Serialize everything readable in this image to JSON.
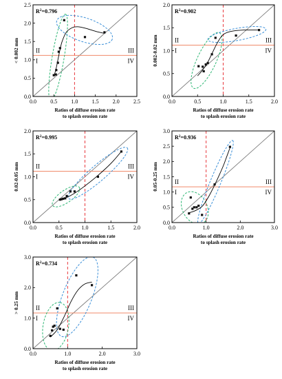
{
  "chart_data": [
    {
      "type": "scatter",
      "ylabel": "< 0.002 mm",
      "xlabel_line1": "Ratios of diffuse erosion rate",
      "xlabel_line2": "to splash erosion rate",
      "r2_base": "R",
      "r2_sup": "2",
      "r2_value": "=0.796",
      "xlim": [
        0,
        2.5
      ],
      "ylim": [
        0,
        2.5
      ],
      "xticks": [
        "0.0",
        "0.5",
        "1.0",
        "1.5",
        "2.0",
        "2.5"
      ],
      "yticks": [
        "0.0",
        "0.5",
        "1.0",
        "1.5",
        "2.0",
        "2.5"
      ],
      "threshold_x": 1.0,
      "threshold_y": 1.12,
      "quadrant_labels": [
        "II",
        "I",
        "III",
        "IV"
      ],
      "points": [
        [
          0.5,
          0.58
        ],
        [
          0.55,
          0.6
        ],
        [
          0.56,
          0.72
        ],
        [
          0.6,
          0.92
        ],
        [
          0.62,
          1.22
        ],
        [
          0.65,
          1.32
        ],
        [
          0.75,
          2.08
        ],
        [
          1.25,
          1.62
        ],
        [
          1.72,
          1.75
        ]
      ],
      "fit": [
        [
          0.5,
          0.55
        ],
        [
          0.55,
          0.73
        ],
        [
          0.6,
          1.0
        ],
        [
          0.65,
          1.28
        ],
        [
          0.7,
          1.5
        ],
        [
          0.8,
          1.75
        ],
        [
          0.95,
          1.88
        ],
        [
          1.1,
          1.9
        ],
        [
          1.3,
          1.85
        ],
        [
          1.5,
          1.78
        ],
        [
          1.72,
          1.72
        ]
      ]
    },
    {
      "type": "scatter",
      "ylabel": "0.002-0.02 mm",
      "xlabel_line1": "Ratios of diffuse erosion rate",
      "xlabel_line2": "to splash erosion rate",
      "r2_base": "R",
      "r2_sup": "2",
      "r2_value": "=0.902",
      "xlim": [
        0,
        2.0
      ],
      "ylim": [
        0,
        2.0
      ],
      "xticks": [
        "0.0",
        "0.5",
        "1.0",
        "1.5",
        "2.0"
      ],
      "yticks": [
        "0.0",
        "0.5",
        "1.0",
        "1.5",
        "2.0"
      ],
      "threshold_x": 1.0,
      "threshold_y": 1.12,
      "quadrant_labels": [
        "II",
        "I",
        "III",
        "IV"
      ],
      "points": [
        [
          0.52,
          0.66
        ],
        [
          0.6,
          0.65
        ],
        [
          0.62,
          0.55
        ],
        [
          0.66,
          0.7
        ],
        [
          0.7,
          0.73
        ],
        [
          0.78,
          0.92
        ],
        [
          0.85,
          1.28
        ],
        [
          1.25,
          1.33
        ],
        [
          1.7,
          1.45
        ]
      ],
      "fit": [
        [
          0.5,
          0.45
        ],
        [
          0.6,
          0.58
        ],
        [
          0.7,
          0.75
        ],
        [
          0.8,
          0.98
        ],
        [
          0.9,
          1.2
        ],
        [
          1.0,
          1.35
        ],
        [
          1.15,
          1.42
        ],
        [
          1.4,
          1.45
        ],
        [
          1.7,
          1.45
        ]
      ]
    },
    {
      "type": "scatter",
      "ylabel": "0.02-0.05 mm",
      "xlabel_line1": "Ratios of diffuse erosion rate",
      "xlabel_line2": "to splash erosion rate",
      "r2_base": "R",
      "r2_sup": "2",
      "r2_value": "=0.995",
      "xlim": [
        0,
        2.0
      ],
      "ylim": [
        0,
        2.0
      ],
      "xticks": [
        "0.0",
        "0.5",
        "1.0",
        "1.5",
        "2.0"
      ],
      "yticks": [
        "0.0",
        "0.5",
        "1.0",
        "1.5",
        "2.0"
      ],
      "threshold_x": 1.0,
      "threshold_y": 1.12,
      "quadrant_labels": [
        "II",
        "I",
        "III",
        "IV"
      ],
      "points": [
        [
          0.52,
          0.5
        ],
        [
          0.55,
          0.51
        ],
        [
          0.58,
          0.52
        ],
        [
          0.62,
          0.53
        ],
        [
          0.65,
          0.58
        ],
        [
          0.72,
          0.68
        ],
        [
          0.8,
          0.68
        ],
        [
          1.25,
          1.0
        ],
        [
          1.7,
          1.55
        ]
      ],
      "fit": [
        [
          0.5,
          0.5
        ],
        [
          0.65,
          0.55
        ],
        [
          0.8,
          0.64
        ],
        [
          1.0,
          0.8
        ],
        [
          1.2,
          0.98
        ],
        [
          1.4,
          1.18
        ],
        [
          1.55,
          1.35
        ],
        [
          1.7,
          1.55
        ]
      ]
    },
    {
      "type": "scatter",
      "ylabel": "0.05-0.25 mm",
      "xlabel_line1": "Ratios of diffuse erosion rate",
      "xlabel_line2": "to splash erosion rate",
      "r2_base": "R",
      "r2_sup": "2",
      "r2_value": "=0.936",
      "xlim": [
        0,
        3.0
      ],
      "ylim": [
        0,
        3.0
      ],
      "xticks": [
        "0.0",
        "1.0",
        "2.0",
        "3.0"
      ],
      "yticks": [
        "0.0",
        "0.5",
        "1.0",
        "1.5",
        "2.0",
        "2.5",
        "3.0"
      ],
      "threshold_x": 1.0,
      "threshold_y": 1.17,
      "quadrant_labels": [
        "II",
        "I",
        "III",
        "IV"
      ],
      "points": [
        [
          0.5,
          0.3
        ],
        [
          0.55,
          0.82
        ],
        [
          0.6,
          0.45
        ],
        [
          0.65,
          0.5
        ],
        [
          0.72,
          0.5
        ],
        [
          0.78,
          0.55
        ],
        [
          0.88,
          0.25
        ],
        [
          1.25,
          1.25
        ],
        [
          1.7,
          2.48
        ]
      ],
      "fit": [
        [
          0.5,
          0.32
        ],
        [
          0.7,
          0.4
        ],
        [
          0.9,
          0.55
        ],
        [
          1.1,
          0.9
        ],
        [
          1.3,
          1.35
        ],
        [
          1.5,
          1.85
        ],
        [
          1.6,
          2.15
        ],
        [
          1.7,
          2.45
        ]
      ]
    },
    {
      "type": "scatter",
      "ylabel": "> 0.25 mm",
      "xlabel_line1": "Ratios of diffuse erosion rate",
      "xlabel_line2": "to splash erosion rate",
      "r2_base": "R",
      "r2_sup": "2",
      "r2_value": "=0.734",
      "xlim": [
        0,
        3.0
      ],
      "ylim": [
        0,
        3.0
      ],
      "xticks": [
        "0.0",
        "1.0",
        "2.0",
        "3.0"
      ],
      "yticks": [
        "0.0",
        "1.0",
        "2.0",
        "3.0"
      ],
      "threshold_x": 1.0,
      "threshold_y": 1.17,
      "quadrant_labels": [
        "II",
        "I",
        "III",
        "IV"
      ],
      "points": [
        [
          0.5,
          0.42
        ],
        [
          0.55,
          0.6
        ],
        [
          0.58,
          0.72
        ],
        [
          0.62,
          0.75
        ],
        [
          0.7,
          1.32
        ],
        [
          0.78,
          0.65
        ],
        [
          0.88,
          0.62
        ],
        [
          1.25,
          2.4
        ],
        [
          1.7,
          2.08
        ]
      ],
      "fit": [
        [
          0.5,
          0.38
        ],
        [
          0.7,
          0.62
        ],
        [
          0.9,
          1.05
        ],
        [
          1.1,
          1.55
        ],
        [
          1.3,
          1.92
        ],
        [
          1.5,
          2.12
        ],
        [
          1.7,
          2.18
        ]
      ]
    }
  ],
  "colors": {
    "axis": "#000000",
    "diagonal": "#7a7a7a",
    "threshold_x": "#e8373c",
    "threshold_y": "#f08a6a",
    "cluster_low": "#2cb673",
    "cluster_high": "#3a8fd8",
    "marker": "#111111"
  }
}
